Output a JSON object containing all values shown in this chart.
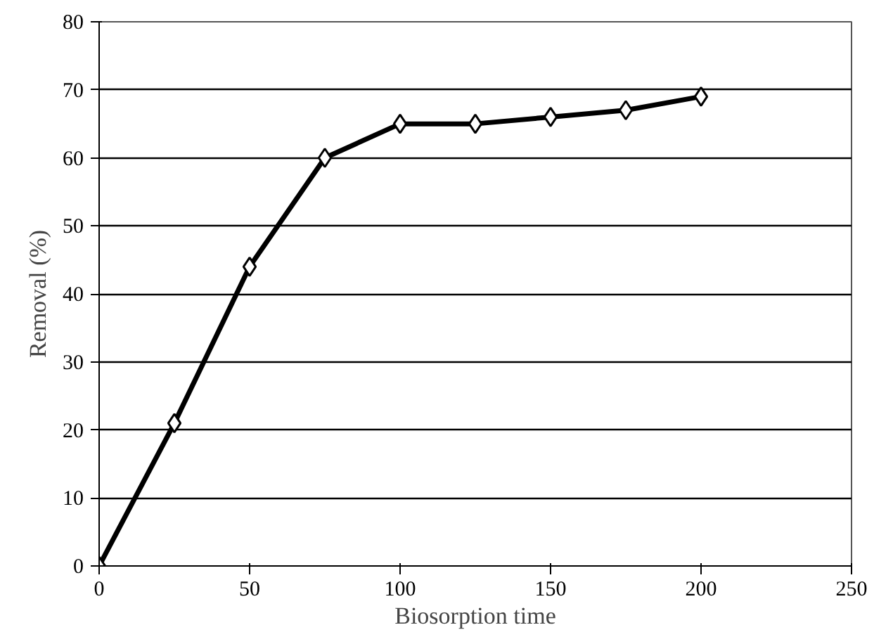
{
  "chart_data": {
    "type": "line",
    "xlabel": "Biosorption time",
    "ylabel": "Removal (%)",
    "x": [
      0,
      25,
      50,
      75,
      100,
      125,
      150,
      175,
      200
    ],
    "series": [
      {
        "color": "#000000",
        "values": [
          0,
          21,
          44,
          60,
          65,
          65,
          66,
          67,
          69
        ]
      }
    ],
    "xlim": [
      0,
      250
    ],
    "xticks": [
      0,
      50,
      100,
      150,
      200,
      250
    ],
    "ylim": [
      0,
      80
    ],
    "yticks": [
      0,
      10,
      20,
      30,
      40,
      50,
      60,
      70,
      80
    ],
    "grid": "y",
    "marker": "diamond",
    "line_style": "solid"
  }
}
